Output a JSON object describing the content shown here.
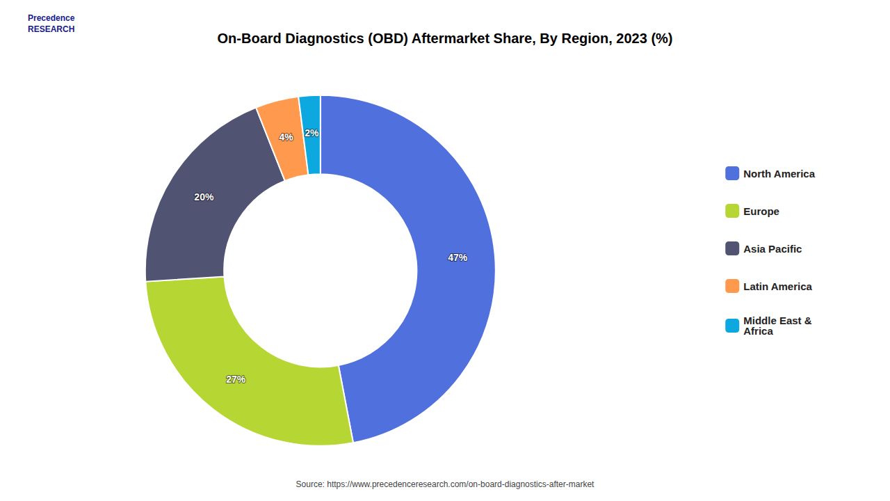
{
  "chart_data": {
    "type": "donut",
    "title": "On-Board Diagnostics (OBD) Aftermarket Share, By Region, 2023 (%)",
    "categories": [
      "North America",
      "Europe",
      "Asia Pacific",
      "Latin America",
      "Middle East &\nAfrica"
    ],
    "values": [
      47,
      27,
      20,
      4,
      2
    ],
    "value_labels": [
      "47%",
      "27%",
      "20%",
      "4%",
      "2%"
    ],
    "data_labels": true,
    "legend": "right",
    "annotations": [
      "Precedence\nRESEARCH",
      "Source: https://www.precedenceresearch.com/on-board-diagnostics-after-market"
    ]
  }
}
